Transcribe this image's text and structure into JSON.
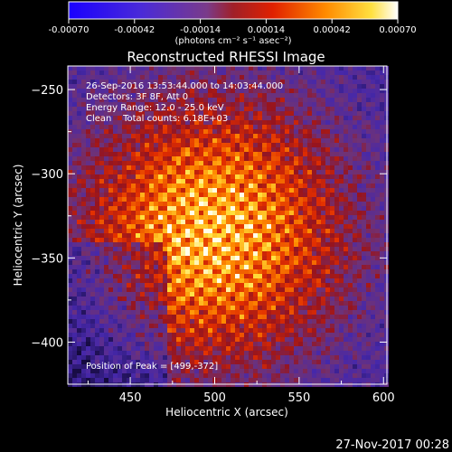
{
  "chart_data": {
    "type": "heatmap",
    "title": "Reconstructed RHESSI Image",
    "xlabel": "Heliocentric X (arcsec)",
    "ylabel": "Heliocentric Y (arcsec)",
    "xlim": [
      413,
      602
    ],
    "ylim": [
      -425,
      -236
    ],
    "x_ticks": [
      450,
      500,
      550,
      600
    ],
    "y_ticks": [
      -250,
      -300,
      -350,
      -400
    ],
    "colorbar": {
      "range": [
        -0.0007,
        0.0007
      ],
      "ticks": [
        "-0.00070",
        "-0.00042",
        "-0.00014",
        "0.00014",
        "0.00042",
        "0.00070"
      ],
      "unit_label": "(photons cm⁻² s⁻¹ asec⁻²)"
    },
    "annotations": {
      "time": "26-Sep-2016 13:53:44.000 to 14:03:44.000",
      "detectors": "Detectors: 3F 8F, Att 0",
      "energy": "Energy Range: 12.0 - 25.0 keV",
      "clean": "Clean    Total counts: 6.18E+03",
      "peak": "Position of Peak = [499,-372]"
    },
    "peak_position": [
      499,
      -372
    ],
    "footer_timestamp": "27-Nov-2017 00:28",
    "colors": {
      "background": "#000000",
      "text": "#ffffff"
    }
  }
}
